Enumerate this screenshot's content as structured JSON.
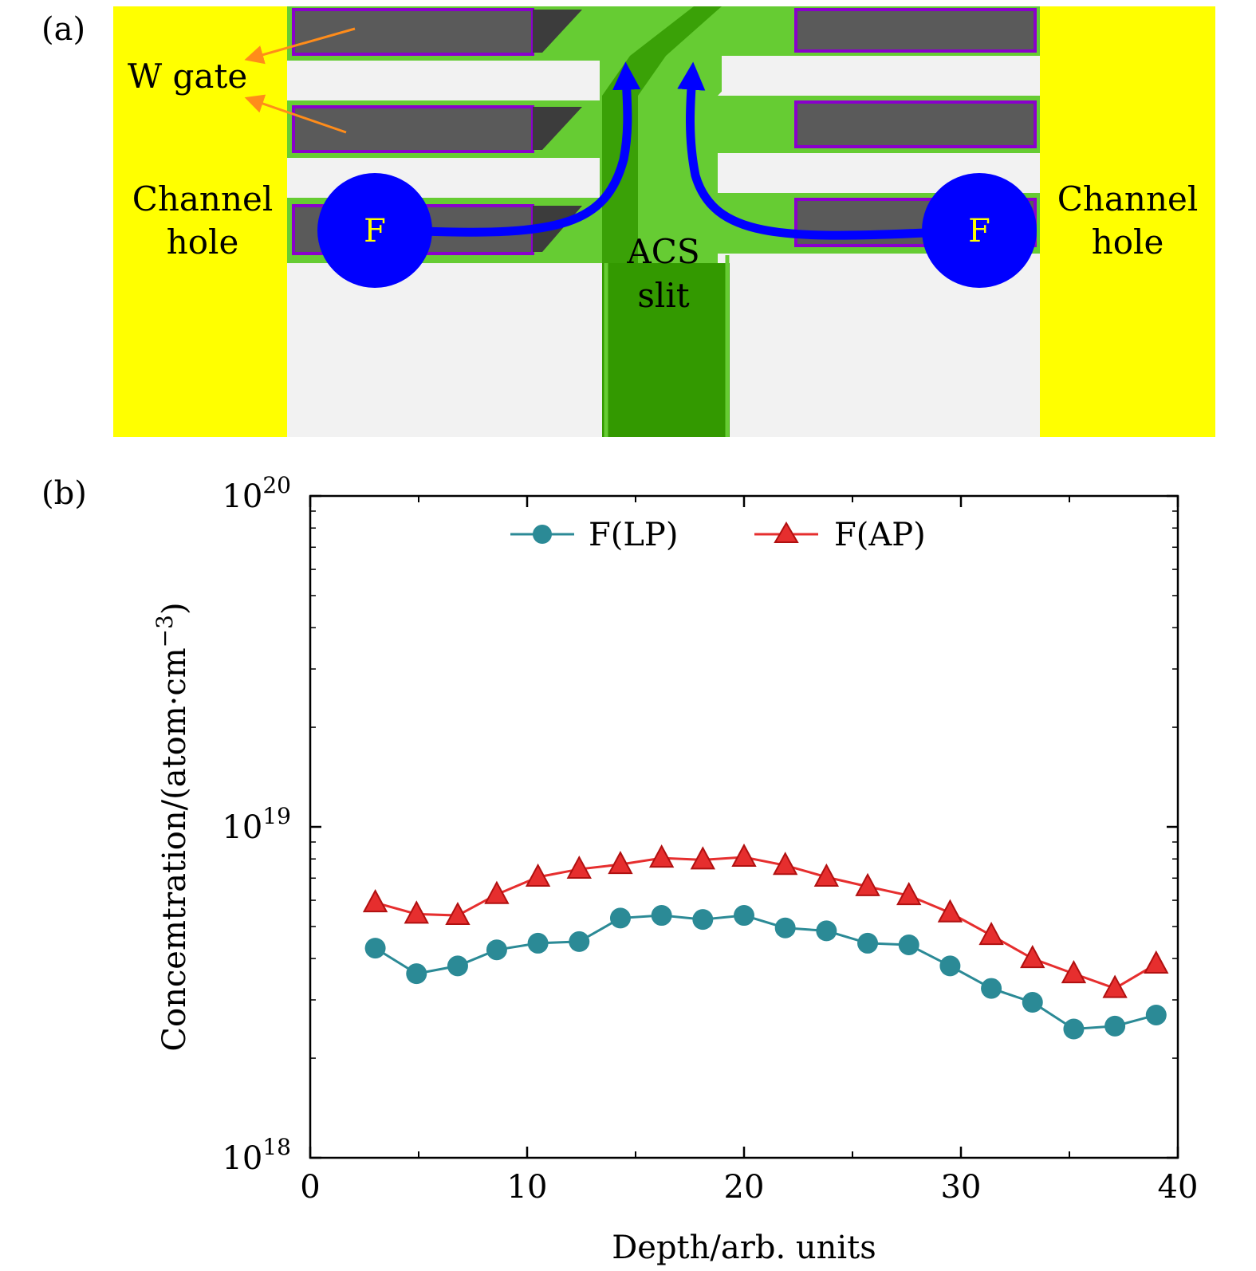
{
  "panel_a": {
    "label": "(a)",
    "w_gate_label": "W gate",
    "left_channel_line1": "Channel",
    "left_channel_line2": "hole",
    "right_channel_line1": "Channel",
    "right_channel_line2": "hole",
    "slit_line1": "ACS",
    "slit_line2": "slit",
    "fluorine_left": "F",
    "fluorine_right": "F",
    "colors": {
      "channel_hole": "#ffff00",
      "slit_dark": "#339900",
      "slit_light": "#66cc33",
      "gate_metal": "#5a5a5a",
      "gate_liner": "#8a00cc",
      "oxide": "#f2f2f2",
      "fluorine": "#0000ff",
      "pointer": "#ff8c1a"
    }
  },
  "panel_b": {
    "label": "(b)"
  },
  "chart_data": {
    "type": "line",
    "title": "",
    "xlabel": "Depth/arb. units",
    "ylabel": "Concemtration/(atom·cm",
    "ylabel_sup": "−3",
    "ylabel_end": ")",
    "xlim": [
      0,
      40
    ],
    "ylim_log10": [
      18,
      20
    ],
    "x_ticks": [
      0,
      10,
      20,
      30,
      40
    ],
    "x_tick_labels": [
      "0",
      "10",
      "20",
      "30",
      "40"
    ],
    "y_ticks_log10": [
      18,
      19,
      20
    ],
    "y_tick_base": "10",
    "y_tick_exponents": [
      "18",
      "19",
      "20"
    ],
    "legend_position": "top-center",
    "x": [
      3,
      4.9,
      6.8,
      8.6,
      10.5,
      12.4,
      14.3,
      16.2,
      18.1,
      20,
      21.9,
      23.8,
      25.7,
      27.6,
      29.5,
      31.4,
      33.3,
      35.2,
      37.1,
      39
    ],
    "series": [
      {
        "name": "F(LP)",
        "marker": "circle",
        "color": "#2b8a96",
        "values": [
          4.3e+18,
          3.6e+18,
          3.8e+18,
          4.25e+18,
          4.45e+18,
          4.5e+18,
          5.3e+18,
          5.4e+18,
          5.25e+18,
          5.4e+18,
          4.95e+18,
          4.85e+18,
          4.45e+18,
          4.4e+18,
          3.8e+18,
          3.25e+18,
          2.95e+18,
          2.45e+18,
          2.5e+18,
          2.7e+18
        ]
      },
      {
        "name": "F(AP)",
        "marker": "triangle",
        "color": "#e62e2e",
        "values": [
          5.9e+18,
          5.45e+18,
          5.4e+18,
          6.25e+18,
          7.05e+18,
          7.45e+18,
          7.7e+18,
          8.05e+18,
          7.95e+18,
          8.1e+18,
          7.65e+18,
          7.05e+18,
          6.6e+18,
          6.2e+18,
          5.5e+18,
          4.7e+18,
          4e+18,
          3.6e+18,
          3.25e+18,
          3.85e+18
        ]
      }
    ]
  }
}
